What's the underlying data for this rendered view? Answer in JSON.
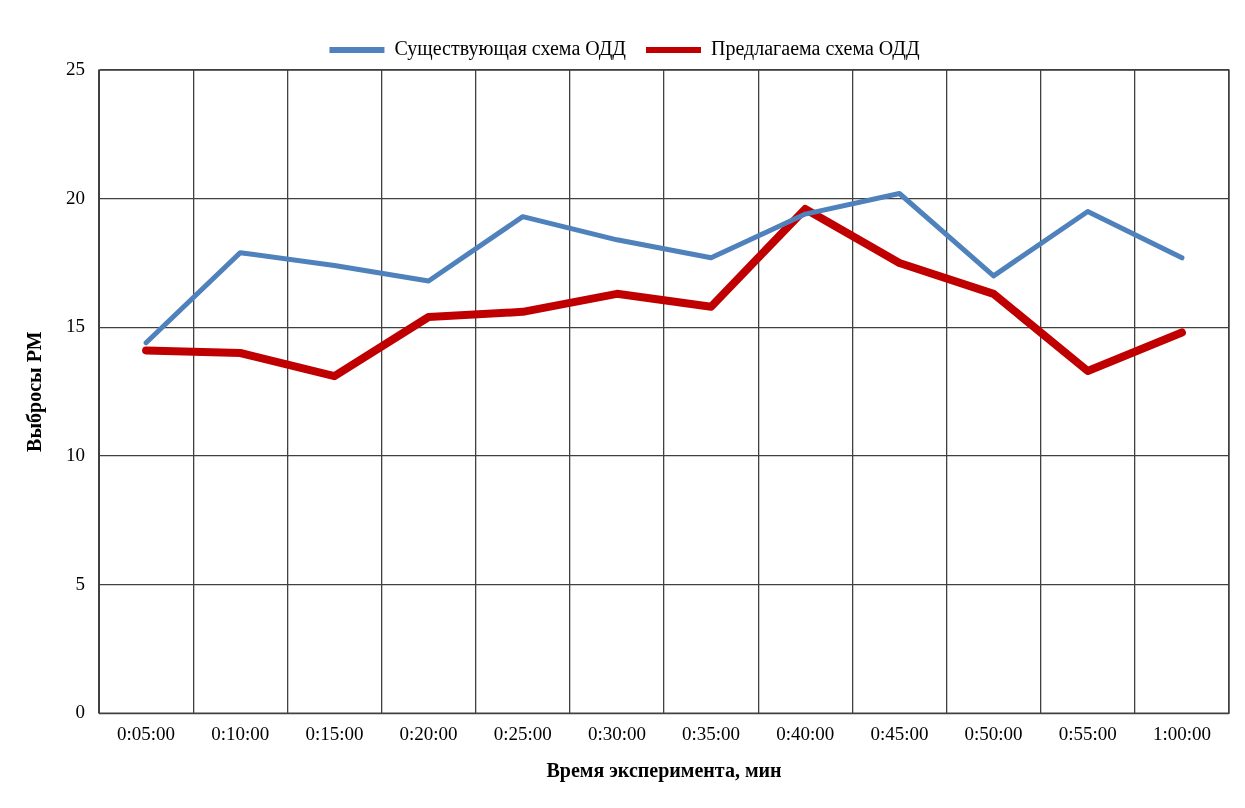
{
  "chart_data": {
    "type": "line",
    "xlabel": "Время эксперимента, мин",
    "ylabel": "Выбросы PM",
    "categories": [
      "0:05:00",
      "0:10:00",
      "0:15:00",
      "0:20:00",
      "0:25:00",
      "0:30:00",
      "0:35:00",
      "0:40:00",
      "0:45:00",
      "0:50:00",
      "0:55:00",
      "1:00:00"
    ],
    "series": [
      {
        "name": "Существующая схема ОДД",
        "color": "#4f81bd",
        "values": [
          14.4,
          17.9,
          17.4,
          16.8,
          19.3,
          18.4,
          17.7,
          19.4,
          20.2,
          17.0,
          19.5,
          17.7
        ]
      },
      {
        "name": "Предлагаема схема ОДД",
        "color": "#c00000",
        "values": [
          14.1,
          14.0,
          13.1,
          15.4,
          15.6,
          16.3,
          15.8,
          19.6,
          17.5,
          16.3,
          13.3,
          14.8
        ]
      }
    ],
    "ylim": [
      0,
      25
    ],
    "yticks": [
      0,
      5,
      10,
      15,
      20,
      25
    ],
    "grid": true,
    "legend": "top",
    "marker": "none",
    "line_style": "solid"
  }
}
